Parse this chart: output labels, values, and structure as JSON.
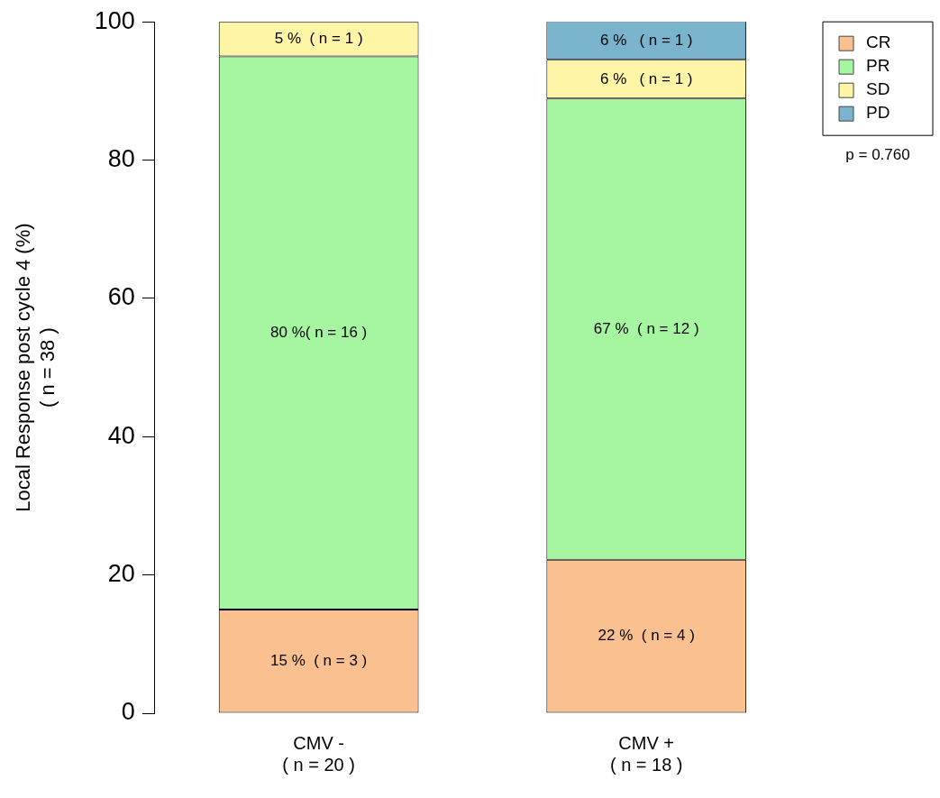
{
  "chart_data": {
    "type": "bar",
    "stacked": true,
    "ylabel": "Local Response post cycle 4 (%)\n( n = 38 )",
    "categories": [
      "CMV -\n( n = 20 )",
      "CMV +\n( n = 18 )"
    ],
    "series": [
      {
        "name": "CR",
        "color": "#fac08f",
        "values": [
          15,
          22.2
        ],
        "value_labels": [
          "15 %  ( n = 3 )",
          "22 %  ( n = 4 )"
        ]
      },
      {
        "name": "PR",
        "color": "#a6f5a0",
        "values": [
          80,
          66.7
        ],
        "value_labels": [
          "80 %( n = 16 )",
          "67 %  ( n = 12 )"
        ]
      },
      {
        "name": "SD",
        "color": "#fff5a6",
        "values": [
          5,
          5.6
        ],
        "value_labels": [
          "5 %  ( n = 1 )",
          "6 %   ( n = 1 )"
        ]
      },
      {
        "name": "PD",
        "color": "#7ab4cc",
        "values": [
          0,
          5.6
        ],
        "value_labels": [
          null,
          "6 %   ( n = 1 )"
        ]
      }
    ],
    "ylim": [
      0,
      100
    ],
    "yticks": [
      0,
      20,
      40,
      60,
      80,
      100
    ],
    "grid": false,
    "legend": "top right",
    "annotations": [
      "p = 0.760"
    ]
  }
}
